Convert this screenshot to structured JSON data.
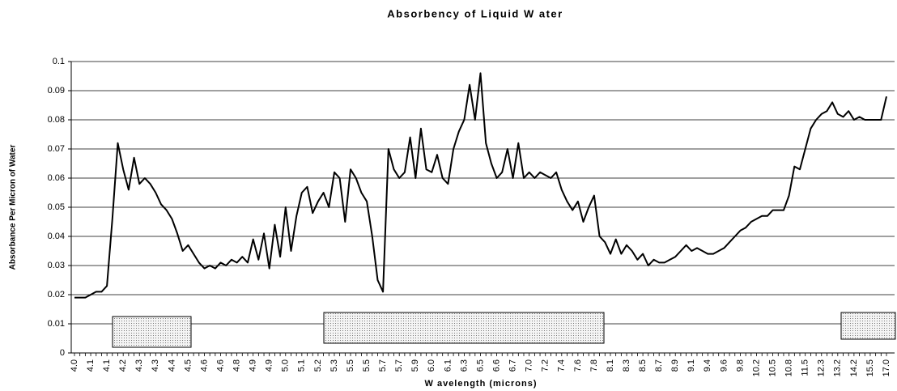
{
  "chart_data": {
    "type": "line",
    "title": "Absorbency of Liquid W ater",
    "x_label": "W avelength (microns)",
    "y_label": "Absorbance Per Micron of Water",
    "color": "#000000",
    "grid": true,
    "ylim": [
      0,
      0.1
    ],
    "yticks": [
      0,
      0.01,
      0.02,
      0.03,
      0.04,
      0.05,
      0.06,
      0.07,
      0.08,
      0.09,
      0.1
    ],
    "categories": [
      "4.0",
      null,
      null,
      "4.1",
      null,
      null,
      "4.1",
      null,
      null,
      "4.2",
      null,
      null,
      "4.3",
      null,
      null,
      "4.3",
      null,
      null,
      "4.4",
      null,
      null,
      "4.5",
      null,
      null,
      "4.6",
      null,
      null,
      "4.6",
      null,
      null,
      "4.8",
      null,
      null,
      "4.9",
      null,
      null,
      "4.9",
      null,
      null,
      "5.0",
      null,
      null,
      "5.1",
      null,
      null,
      "5.2",
      null,
      null,
      "5.3",
      null,
      null,
      "5.5",
      null,
      null,
      "5.5",
      null,
      null,
      "5.7",
      null,
      null,
      "5.7",
      null,
      null,
      "5.9",
      null,
      null,
      "6.0",
      null,
      null,
      "6.1",
      null,
      null,
      "6.3",
      null,
      null,
      "6.5",
      null,
      null,
      "6.6",
      null,
      null,
      "6.7",
      null,
      null,
      "7.0",
      null,
      null,
      "7.2",
      null,
      null,
      "7.4",
      null,
      null,
      "7.6",
      null,
      null,
      "7.8",
      null,
      null,
      "8.1",
      null,
      null,
      "8.3",
      null,
      null,
      "8.5",
      null,
      null,
      "8.7",
      null,
      null,
      "8.9",
      null,
      null,
      "9.1",
      null,
      null,
      "9.4",
      null,
      null,
      "9.6",
      null,
      null,
      "9.8",
      null,
      null,
      "10.2",
      null,
      null,
      "10.5",
      null,
      null,
      "10.8",
      null,
      null,
      "11.5",
      null,
      null,
      "12.3",
      null,
      null,
      "13.2",
      null,
      null,
      "14.2",
      null,
      null,
      "15.5",
      null,
      null,
      "17.0"
    ],
    "values": [
      0.019,
      0.019,
      0.019,
      0.02,
      0.021,
      0.021,
      0.023,
      0.046,
      0.072,
      0.063,
      0.056,
      0.067,
      0.058,
      0.06,
      0.058,
      0.055,
      0.051,
      0.049,
      0.046,
      0.041,
      0.035,
      0.037,
      0.034,
      0.031,
      0.029,
      0.03,
      0.029,
      0.031,
      0.03,
      0.032,
      0.031,
      0.033,
      0.031,
      0.039,
      0.032,
      0.041,
      0.029,
      0.044,
      0.033,
      0.05,
      0.035,
      0.047,
      0.055,
      0.057,
      0.048,
      0.052,
      0.055,
      0.05,
      0.062,
      0.06,
      0.045,
      0.063,
      0.06,
      0.055,
      0.052,
      0.04,
      0.025,
      0.021,
      0.07,
      0.063,
      0.06,
      0.062,
      0.074,
      0.06,
      0.077,
      0.063,
      0.062,
      0.068,
      0.06,
      0.058,
      0.07,
      0.076,
      0.08,
      0.092,
      0.08,
      0.096,
      0.072,
      0.065,
      0.06,
      0.062,
      0.07,
      0.06,
      0.072,
      0.06,
      0.062,
      0.06,
      0.062,
      0.061,
      0.06,
      0.062,
      0.056,
      0.052,
      0.049,
      0.052,
      0.045,
      0.05,
      0.054,
      0.04,
      0.038,
      0.034,
      0.039,
      0.034,
      0.037,
      0.035,
      0.032,
      0.034,
      0.03,
      0.032,
      0.031,
      0.031,
      0.032,
      0.033,
      0.035,
      0.037,
      0.035,
      0.036,
      0.035,
      0.034,
      0.034,
      0.035,
      0.036,
      0.038,
      0.04,
      0.042,
      0.043,
      0.045,
      0.046,
      0.047,
      0.047,
      0.049,
      0.049,
      0.049,
      0.054,
      0.064,
      0.063,
      0.07,
      0.077,
      0.08,
      0.082,
      0.083,
      0.086,
      0.082,
      0.081,
      0.083,
      0.08,
      0.081,
      0.08,
      0.08,
      0.08,
      0.08,
      0.088
    ]
  }
}
